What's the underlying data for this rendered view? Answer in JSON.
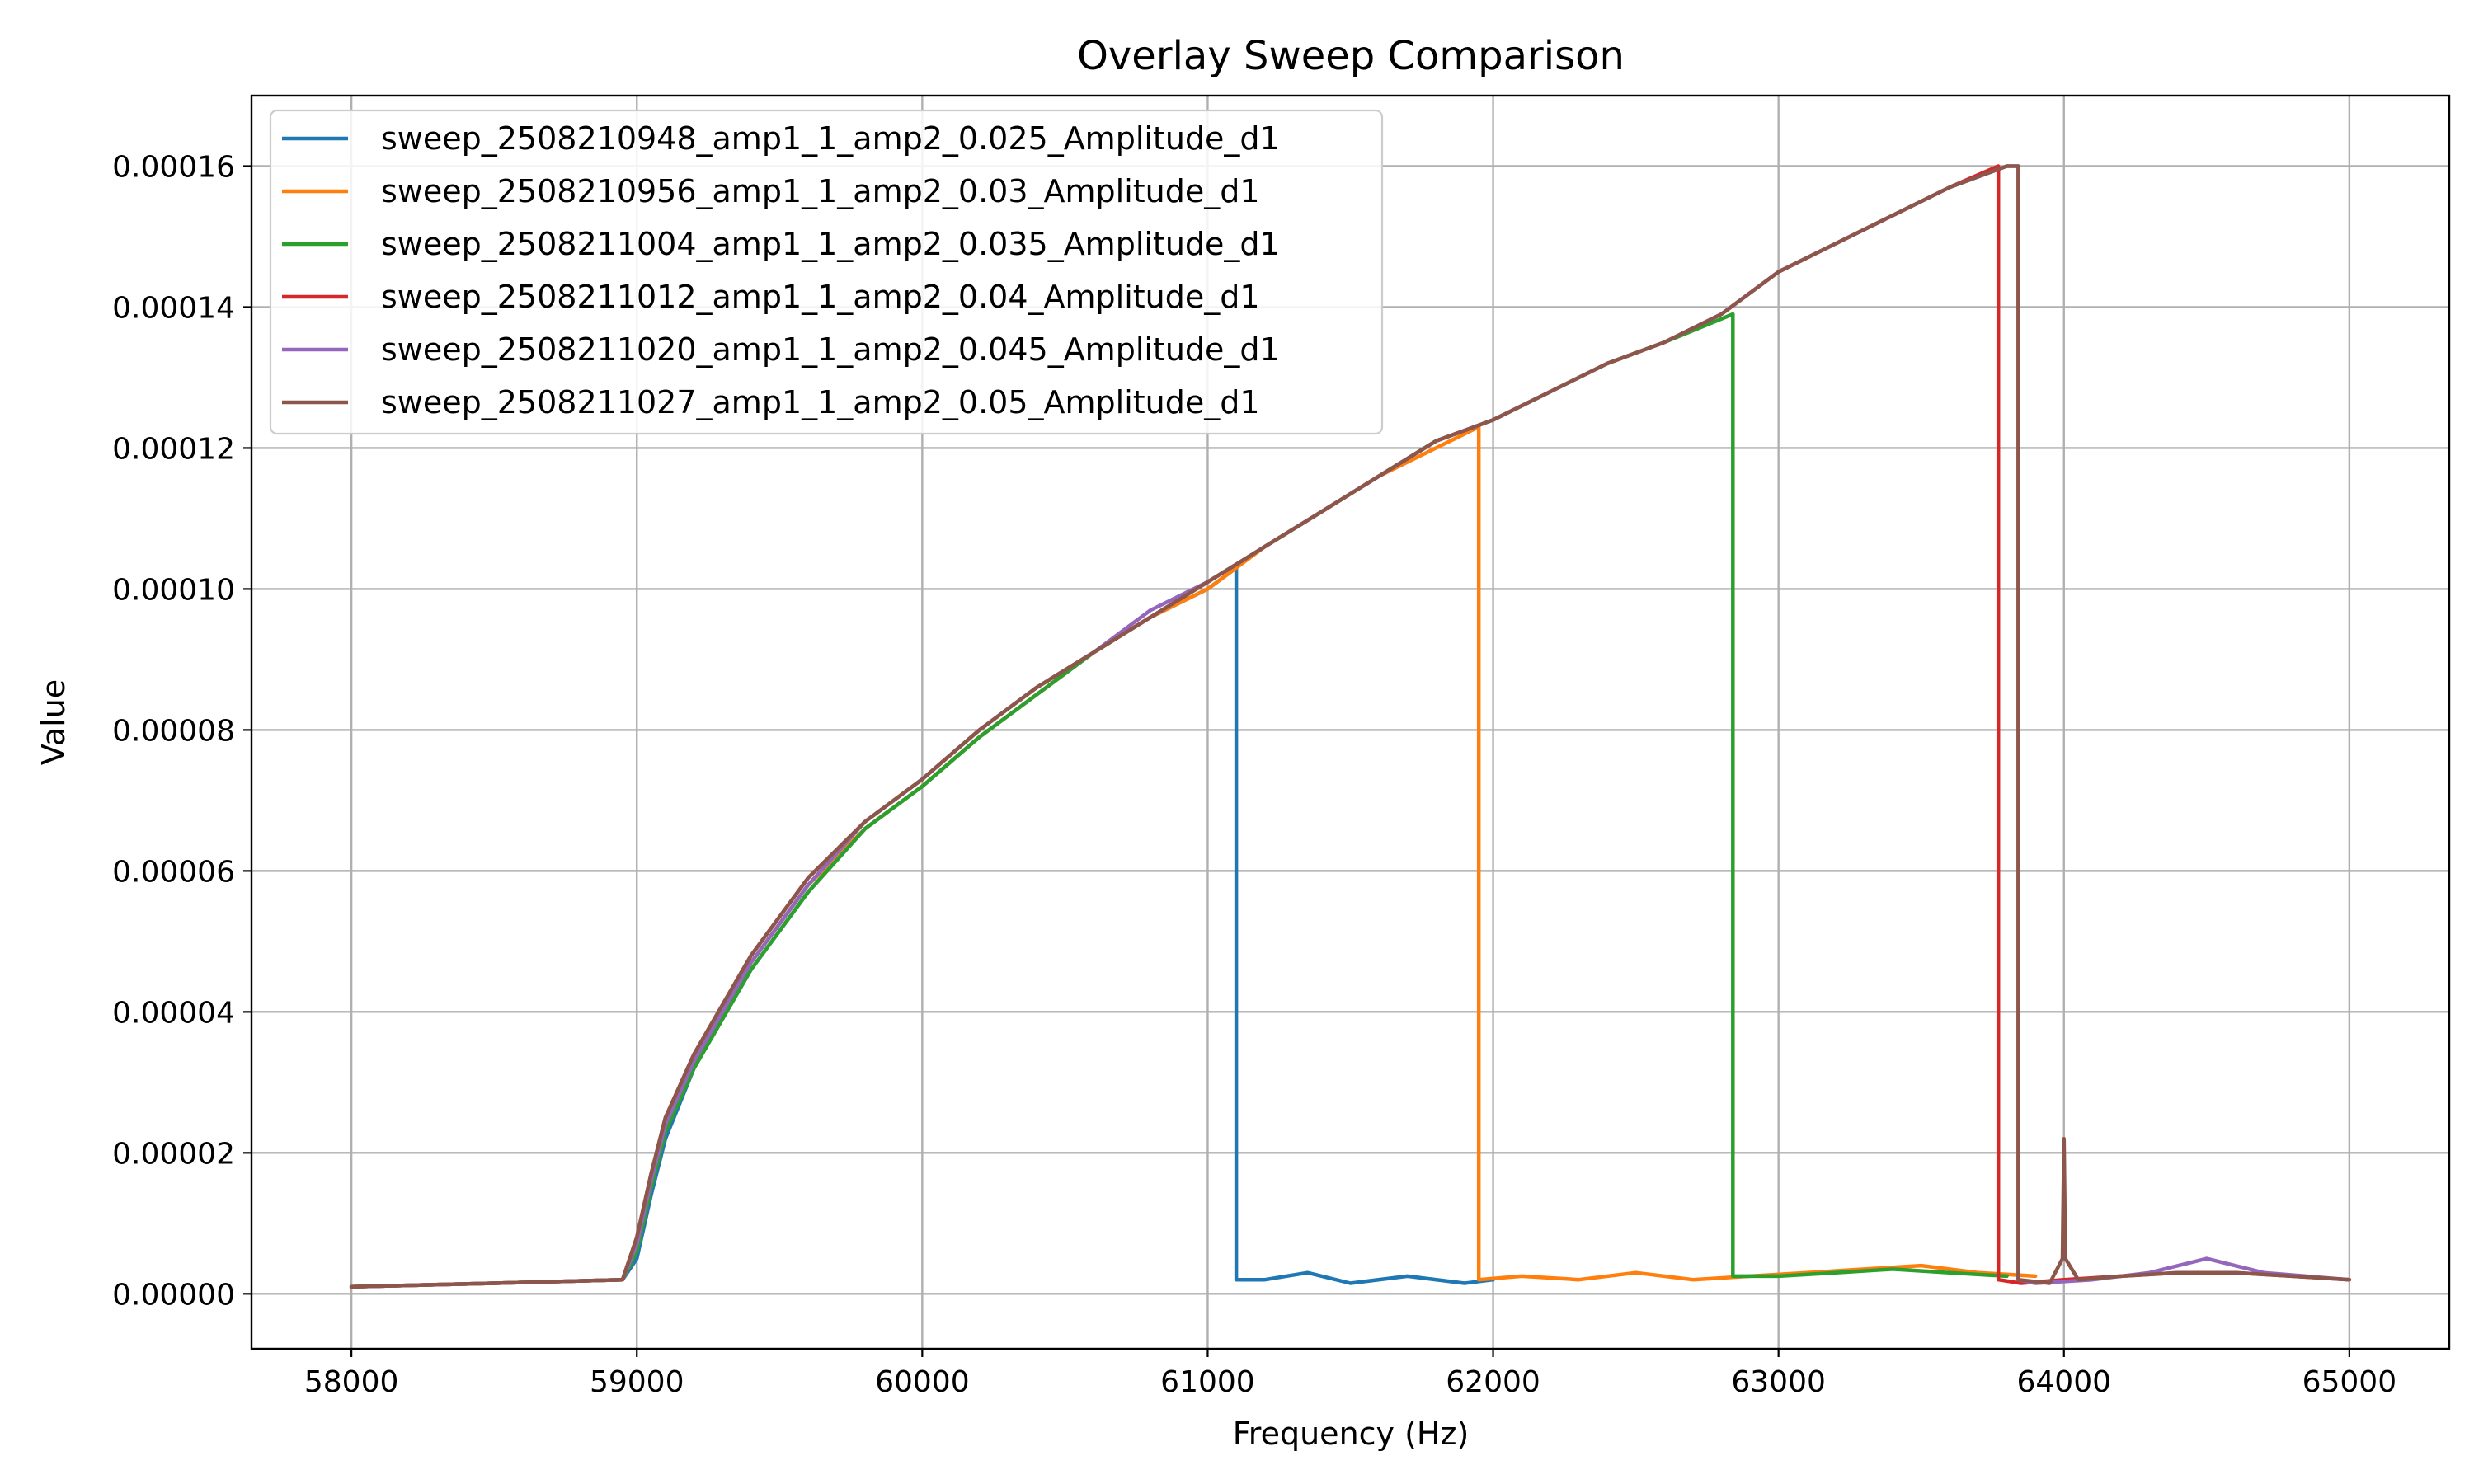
{
  "chart_data": {
    "type": "line",
    "title": "Overlay Sweep Comparison",
    "xlabel": "Frequency (Hz)",
    "ylabel": "Value",
    "xlim": [
      57650,
      65350
    ],
    "ylim": [
      -7.8e-06,
      0.00017
    ],
    "x_ticks": [
      58000,
      59000,
      60000,
      61000,
      62000,
      63000,
      64000,
      65000
    ],
    "x_tick_labels": [
      "58000",
      "59000",
      "60000",
      "61000",
      "62000",
      "63000",
      "64000",
      "65000"
    ],
    "y_ticks": [
      0,
      2e-05,
      4e-05,
      6e-05,
      8e-05,
      0.0001,
      0.00012,
      0.00014,
      0.00016
    ],
    "y_tick_labels": [
      "0.00000",
      "0.00002",
      "0.00004",
      "0.00006",
      "0.00008",
      "0.00010",
      "0.00012",
      "0.00014",
      "0.00016"
    ],
    "grid": true,
    "legend_position": "top-left",
    "series": [
      {
        "name": "sweep_2508210948_amp1_1_amp2_0.025_Amplitude_d1",
        "color": "#1f77b4",
        "x": [
          58000,
          58500,
          58950,
          59000,
          59050,
          59100,
          59200,
          59400,
          59600,
          59800,
          60000,
          60200,
          60400,
          60600,
          60800,
          61000,
          61100,
          61100,
          61200,
          61350,
          61500,
          61700,
          61900,
          62000
        ],
        "y": [
          1e-06,
          1.5e-06,
          2e-06,
          5e-06,
          1.4e-05,
          2.2e-05,
          3.2e-05,
          4.6e-05,
          5.7e-05,
          6.6e-05,
          7.2e-05,
          7.9e-05,
          8.5e-05,
          9.1e-05,
          9.6e-05,
          0.0001,
          0.000103,
          2e-06,
          2e-06,
          3e-06,
          1.5e-06,
          2.5e-06,
          1.5e-06,
          2e-06
        ]
      },
      {
        "name": "sweep_2508210956_amp1_1_amp2_0.03_Amplitude_d1",
        "color": "#ff7f0e",
        "x": [
          58000,
          58500,
          58950,
          59000,
          59050,
          59100,
          59200,
          59400,
          59600,
          59800,
          60000,
          60200,
          60400,
          60600,
          60800,
          61000,
          61200,
          61400,
          61600,
          61800,
          61950,
          61950,
          62100,
          62300,
          62500,
          62700,
          62900,
          63100,
          63300,
          63500,
          63700,
          63900
        ],
        "y": [
          1e-06,
          1.5e-06,
          2e-06,
          7e-06,
          1.6e-05,
          2.4e-05,
          3.3e-05,
          4.7e-05,
          5.8e-05,
          6.6e-05,
          7.2e-05,
          7.9e-05,
          8.5e-05,
          9.1e-05,
          9.6e-05,
          0.0001,
          0.000106,
          0.000111,
          0.000116,
          0.00012,
          0.000123,
          2e-06,
          2.5e-06,
          2e-06,
          3e-06,
          2e-06,
          2.5e-06,
          3e-06,
          3.5e-06,
          4e-06,
          3e-06,
          2.5e-06
        ]
      },
      {
        "name": "sweep_2508211004_amp1_1_amp2_0.035_Amplitude_d1",
        "color": "#2ca02c",
        "x": [
          58000,
          58500,
          58950,
          59000,
          59050,
          59100,
          59200,
          59400,
          59600,
          59800,
          60000,
          60200,
          60400,
          60600,
          60800,
          61000,
          61200,
          61400,
          61600,
          61800,
          62000,
          62200,
          62400,
          62600,
          62840,
          62840,
          63000,
          63200,
          63400,
          63600,
          63800
        ],
        "y": [
          1e-06,
          1.5e-06,
          2e-06,
          6e-06,
          1.5e-05,
          2.3e-05,
          3.2e-05,
          4.6e-05,
          5.7e-05,
          6.6e-05,
          7.2e-05,
          7.9e-05,
          8.5e-05,
          9.1e-05,
          9.6e-05,
          0.000101,
          0.000106,
          0.000111,
          0.000116,
          0.000121,
          0.000124,
          0.000128,
          0.000132,
          0.000135,
          0.000139,
          2.5e-06,
          2.5e-06,
          3e-06,
          3.5e-06,
          3e-06,
          2.5e-06
        ]
      },
      {
        "name": "sweep_2508211012_amp1_1_amp2_0.04_Amplitude_d1",
        "color": "#d62728",
        "x": [
          58000,
          58500,
          58950,
          59000,
          59050,
          59100,
          59200,
          59400,
          59600,
          59800,
          60000,
          60200,
          60400,
          60600,
          60800,
          61000,
          61200,
          61400,
          61600,
          61800,
          62000,
          62200,
          62400,
          62600,
          62800,
          63000,
          63200,
          63400,
          63600,
          63770,
          63770,
          63850,
          64000,
          64200,
          64400,
          64600,
          64800,
          65000
        ],
        "y": [
          1e-06,
          1.5e-06,
          2e-06,
          8e-06,
          1.7e-05,
          2.5e-05,
          3.4e-05,
          4.8e-05,
          5.9e-05,
          6.7e-05,
          7.3e-05,
          8e-05,
          8.6e-05,
          9.1e-05,
          9.6e-05,
          0.000101,
          0.000106,
          0.000111,
          0.000116,
          0.000121,
          0.000124,
          0.000128,
          0.000132,
          0.000135,
          0.000139,
          0.000145,
          0.000149,
          0.000153,
          0.000157,
          0.00016,
          2e-06,
          1.5e-06,
          2e-06,
          2.5e-06,
          3e-06,
          3e-06,
          2.5e-06,
          2e-06
        ]
      },
      {
        "name": "sweep_2508211020_amp1_1_amp2_0.045_Amplitude_d1",
        "color": "#9467bd",
        "x": [
          58000,
          58500,
          58950,
          59000,
          59050,
          59100,
          59200,
          59400,
          59600,
          59800,
          60000,
          60200,
          60400,
          60600,
          60800,
          61000,
          61200,
          61400,
          61600,
          61800,
          62000,
          62200,
          62400,
          62600,
          62800,
          63000,
          63200,
          63400,
          63600,
          63800,
          63840,
          63840,
          63900,
          64100,
          64300,
          64500,
          64700,
          65000
        ],
        "y": [
          1e-06,
          1.5e-06,
          2e-06,
          7e-06,
          1.6e-05,
          2.4e-05,
          3.3e-05,
          4.7e-05,
          5.8e-05,
          6.7e-05,
          7.3e-05,
          8e-05,
          8.6e-05,
          9.1e-05,
          9.7e-05,
          0.000101,
          0.000106,
          0.000111,
          0.000116,
          0.000121,
          0.000124,
          0.000128,
          0.000132,
          0.000135,
          0.000139,
          0.000145,
          0.000149,
          0.000153,
          0.000157,
          0.00016,
          0.00016,
          2e-06,
          1.5e-06,
          2e-06,
          3e-06,
          5e-06,
          3e-06,
          2e-06
        ]
      },
      {
        "name": "sweep_2508211027_amp1_1_amp2_0.05_Amplitude_d1",
        "color": "#8c564b",
        "x": [
          58000,
          58500,
          58950,
          59000,
          59050,
          59100,
          59200,
          59400,
          59600,
          59800,
          60000,
          60200,
          60400,
          60600,
          60800,
          61000,
          61200,
          61400,
          61600,
          61800,
          62000,
          62200,
          62400,
          62600,
          62800,
          63000,
          63200,
          63400,
          63600,
          63800,
          63840,
          63840,
          63950,
          63995,
          64000,
          64005,
          64050,
          64200,
          64400,
          64600,
          64800,
          65000
        ],
        "y": [
          1e-06,
          1.5e-06,
          2e-06,
          8e-06,
          1.7e-05,
          2.5e-05,
          3.4e-05,
          4.8e-05,
          5.9e-05,
          6.7e-05,
          7.3e-05,
          8e-05,
          8.6e-05,
          9.1e-05,
          9.6e-05,
          0.000101,
          0.000106,
          0.000111,
          0.000116,
          0.000121,
          0.000124,
          0.000128,
          0.000132,
          0.000135,
          0.000139,
          0.000145,
          0.000149,
          0.000153,
          0.000157,
          0.00016,
          0.00016,
          2e-06,
          1.5e-06,
          5e-06,
          2.2e-05,
          5e-06,
          2e-06,
          2.5e-06,
          3e-06,
          3e-06,
          2.5e-06,
          2e-06
        ]
      }
    ]
  }
}
